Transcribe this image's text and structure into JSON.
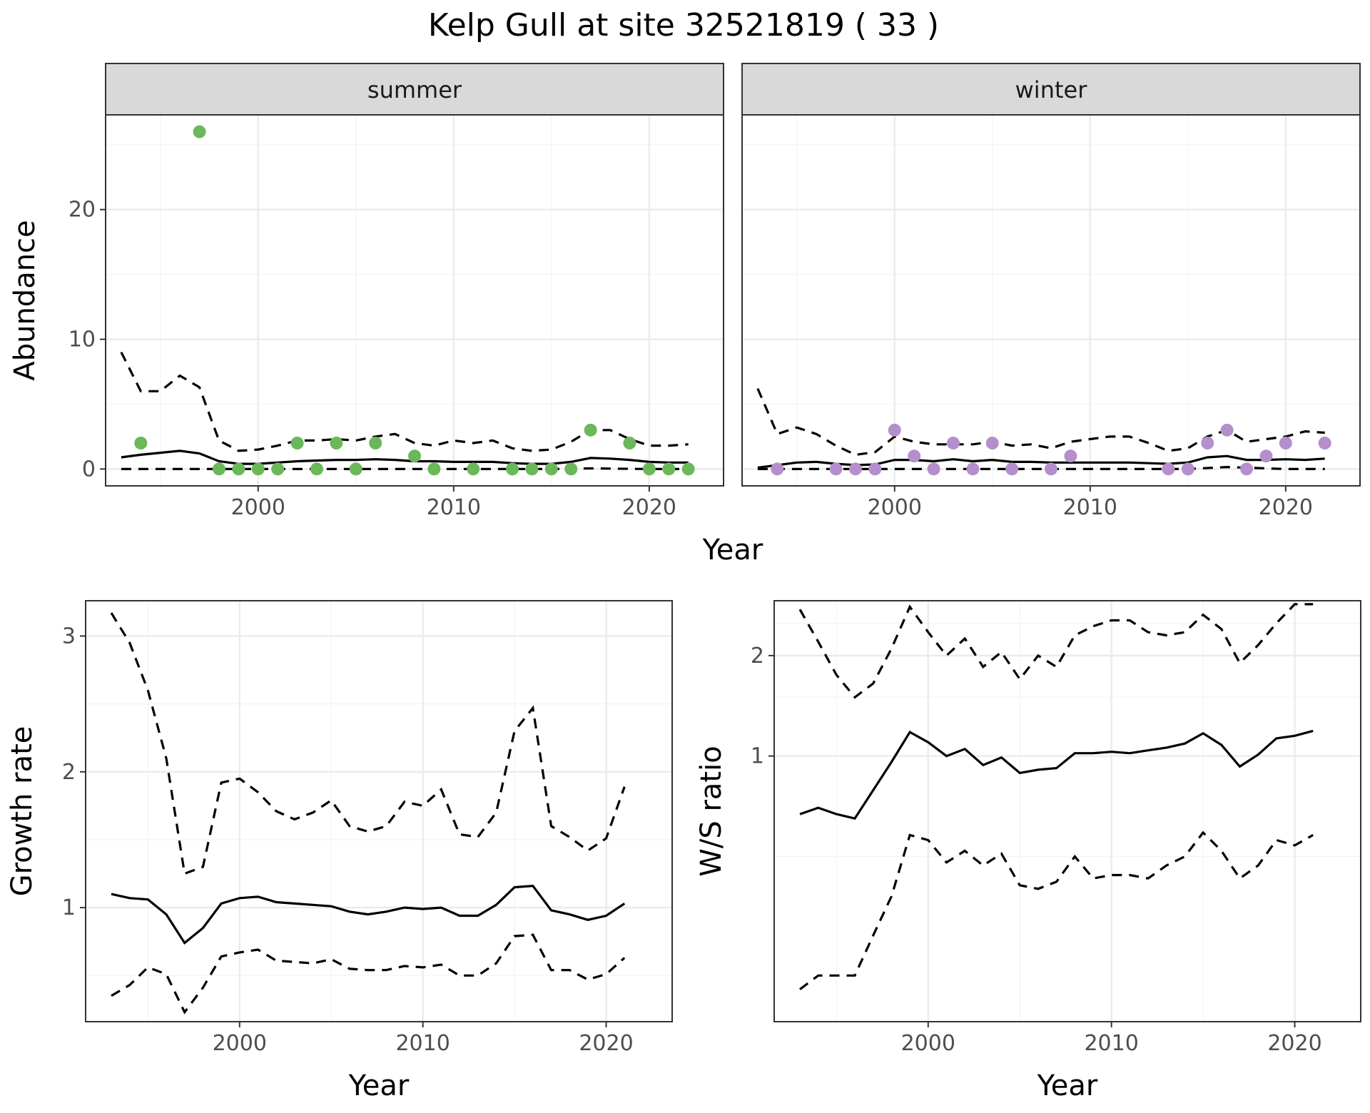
{
  "title": "Kelp Gull at site 32521819 ( 33 )",
  "chart_data": [
    {
      "type": "line",
      "panel": "abundance",
      "ylabel": "Abundance",
      "xlabel": "Year",
      "xlim": [
        1992.2,
        2023.8
      ],
      "ylim": [
        -1.3,
        27.3
      ],
      "x_ticks": [
        2000,
        2010,
        2020
      ],
      "y_ticks": [
        0,
        10,
        20
      ],
      "facets": [
        {
          "label": "summer",
          "point_color": "#6ab85a",
          "points": {
            "x": [
              1994,
              1997,
              1998,
              1999,
              2000,
              2001,
              2002,
              2003,
              2004,
              2005,
              2006,
              2008,
              2009,
              2011,
              2013,
              2014,
              2015,
              2016,
              2017,
              2019,
              2020,
              2021,
              2022
            ],
            "y": [
              2,
              26,
              0,
              0,
              0,
              0,
              2,
              0,
              2,
              0,
              2,
              1,
              0,
              0,
              0,
              0,
              0,
              0,
              3,
              2,
              0,
              0,
              0
            ]
          },
          "series": [
            {
              "style": "solid",
              "x": [
                1993,
                1994,
                1995,
                1996,
                1997,
                1998,
                1999,
                2000,
                2001,
                2002,
                2003,
                2004,
                2005,
                2006,
                2007,
                2008,
                2009,
                2010,
                2011,
                2012,
                2013,
                2014,
                2015,
                2016,
                2017,
                2018,
                2019,
                2020,
                2021,
                2022
              ],
              "values": [
                0.9,
                1.1,
                1.25,
                1.4,
                1.2,
                0.6,
                0.4,
                0.4,
                0.5,
                0.6,
                0.65,
                0.7,
                0.7,
                0.75,
                0.7,
                0.6,
                0.6,
                0.55,
                0.55,
                0.55,
                0.45,
                0.4,
                0.4,
                0.55,
                0.85,
                0.8,
                0.7,
                0.55,
                0.5,
                0.5
              ]
            },
            {
              "style": "dashed",
              "x": [
                1993,
                1994,
                1995,
                1996,
                1997,
                1998,
                1999,
                2000,
                2001,
                2002,
                2003,
                2004,
                2005,
                2006,
                2007,
                2008,
                2009,
                2010,
                2011,
                2012,
                2013,
                2014,
                2015,
                2016,
                2017,
                2018,
                2019,
                2020,
                2021,
                2022
              ],
              "values": [
                9,
                6,
                6,
                7.2,
                6.3,
                2.2,
                1.4,
                1.5,
                1.8,
                2.2,
                2.2,
                2.3,
                2.2,
                2.5,
                2.7,
                2,
                1.8,
                2.2,
                2,
                2.2,
                1.6,
                1.4,
                1.5,
                2.1,
                3,
                3,
                2.3,
                1.8,
                1.8,
                1.9
              ]
            },
            {
              "style": "dashed",
              "x": [
                1993,
                1996,
                2000,
                2005,
                2010,
                2015,
                2017,
                2020,
                2022
              ],
              "values": [
                0,
                0,
                0,
                0,
                0,
                0,
                0.05,
                0,
                0
              ]
            }
          ]
        },
        {
          "label": "winter",
          "point_color": "#b58fcb",
          "points": {
            "x": [
              1994,
              1997,
              1998,
              1999,
              2000,
              2001,
              2002,
              2003,
              2004,
              2005,
              2006,
              2008,
              2009,
              2014,
              2015,
              2016,
              2017,
              2018,
              2019,
              2020,
              2022
            ],
            "y": [
              0,
              0,
              0,
              0,
              3,
              1,
              0,
              2,
              0,
              2,
              0,
              0,
              1,
              0,
              0,
              2,
              3,
              0,
              1,
              2,
              2
            ]
          },
          "series": [
            {
              "style": "solid",
              "x": [
                1993,
                1994,
                1995,
                1996,
                1997,
                1998,
                1999,
                2000,
                2001,
                2002,
                2003,
                2004,
                2005,
                2006,
                2007,
                2008,
                2009,
                2010,
                2011,
                2012,
                2013,
                2014,
                2015,
                2016,
                2017,
                2018,
                2019,
                2020,
                2021,
                2022
              ],
              "values": [
                0.1,
                0.3,
                0.5,
                0.55,
                0.4,
                0.3,
                0.35,
                0.7,
                0.7,
                0.6,
                0.75,
                0.6,
                0.7,
                0.55,
                0.55,
                0.5,
                0.5,
                0.5,
                0.5,
                0.5,
                0.45,
                0.4,
                0.5,
                0.9,
                1,
                0.7,
                0.7,
                0.75,
                0.7,
                0.8
              ]
            },
            {
              "style": "dashed",
              "x": [
                1993,
                1994,
                1995,
                1996,
                1997,
                1998,
                1999,
                2000,
                2001,
                2002,
                2003,
                2004,
                2005,
                2006,
                2007,
                2008,
                2009,
                2010,
                2011,
                2012,
                2013,
                2014,
                2015,
                2016,
                2017,
                2018,
                2019,
                2020,
                2021,
                2022
              ],
              "values": [
                6.2,
                2.7,
                3.2,
                2.7,
                1.8,
                1.1,
                1.3,
                2.5,
                2.1,
                1.9,
                1.9,
                1.9,
                2.1,
                1.8,
                1.9,
                1.6,
                2.1,
                2.3,
                2.5,
                2.5,
                2,
                1.4,
                1.6,
                2.5,
                3,
                2.1,
                2.3,
                2.5,
                2.9,
                2.8
              ]
            },
            {
              "style": "dashed",
              "x": [
                1993,
                1996,
                2000,
                2005,
                2010,
                2015,
                2017,
                2020,
                2022
              ],
              "values": [
                0,
                0,
                0,
                0,
                0,
                0,
                0.15,
                0,
                0
              ]
            }
          ]
        }
      ]
    },
    {
      "type": "line",
      "panel": "growth",
      "ylabel": "Growth rate",
      "xlabel": "Year",
      "xlim": [
        1991.6,
        2023.6
      ],
      "ylim": [
        0.16,
        3.26
      ],
      "x_ticks": [
        2000,
        2010,
        2020
      ],
      "y_ticks": [
        1,
        2,
        3
      ],
      "series": [
        {
          "style": "solid",
          "x": [
            1993,
            1994,
            1995,
            1996,
            1997,
            1998,
            1999,
            2000,
            2001,
            2002,
            2003,
            2004,
            2005,
            2006,
            2007,
            2008,
            2009,
            2010,
            2011,
            2012,
            2013,
            2014,
            2015,
            2016,
            2017,
            2018,
            2019,
            2020,
            2021
          ],
          "values": [
            1.1,
            1.07,
            1.06,
            0.95,
            0.74,
            0.85,
            1.03,
            1.07,
            1.08,
            1.04,
            1.03,
            1.02,
            1.01,
            0.97,
            0.95,
            0.97,
            1,
            0.99,
            1,
            0.94,
            0.94,
            1.02,
            1.15,
            1.16,
            0.98,
            0.95,
            0.91,
            0.94,
            1.03
          ]
        },
        {
          "style": "dashed",
          "x": [
            1993,
            1994,
            1995,
            1996,
            1997,
            1998,
            1999,
            2000,
            2001,
            2002,
            2003,
            2004,
            2005,
            2006,
            2007,
            2008,
            2009,
            2010,
            2011,
            2012,
            2013,
            2014,
            2015,
            2016,
            2017,
            2018,
            2019,
            2020,
            2021
          ],
          "values": [
            3.17,
            2.95,
            2.6,
            2.1,
            1.25,
            1.3,
            1.92,
            1.95,
            1.85,
            1.71,
            1.65,
            1.7,
            1.79,
            1.6,
            1.56,
            1.6,
            1.78,
            1.75,
            1.87,
            1.54,
            1.52,
            1.7,
            2.3,
            2.47,
            1.6,
            1.52,
            1.42,
            1.51,
            1.89
          ]
        },
        {
          "style": "dashed",
          "x": [
            1993,
            1994,
            1995,
            1996,
            1997,
            1998,
            1999,
            2000,
            2001,
            2002,
            2003,
            2004,
            2005,
            2006,
            2007,
            2008,
            2009,
            2010,
            2011,
            2012,
            2013,
            2014,
            2015,
            2016,
            2017,
            2018,
            2019,
            2020,
            2021
          ],
          "values": [
            0.35,
            0.43,
            0.56,
            0.51,
            0.23,
            0.41,
            0.64,
            0.67,
            0.69,
            0.61,
            0.6,
            0.59,
            0.62,
            0.55,
            0.54,
            0.54,
            0.57,
            0.56,
            0.58,
            0.5,
            0.5,
            0.59,
            0.79,
            0.8,
            0.54,
            0.54,
            0.47,
            0.51,
            0.63
          ]
        }
      ]
    },
    {
      "type": "line",
      "panel": "ratio",
      "ylabel": "W/S ratio",
      "xlabel": "Year",
      "xlim": [
        1991.6,
        2023.6
      ],
      "ylim": [
        0.16,
        2.92
      ],
      "x_ticks": [
        2000,
        2010,
        2020
      ],
      "y_ticks": [
        1,
        2
      ],
      "y_scale": "log",
      "series": [
        {
          "style": "solid",
          "x": [
            1993,
            1994,
            1995,
            1996,
            1997,
            1998,
            1999,
            2000,
            2001,
            2002,
            2003,
            2004,
            2005,
            2006,
            2007,
            2008,
            2009,
            2010,
            2011,
            2012,
            2013,
            2014,
            2015,
            2016,
            2017,
            2018,
            2019,
            2020,
            2021
          ],
          "values": [
            0.67,
            0.7,
            0.67,
            0.65,
            0.79,
            0.96,
            1.18,
            1.1,
            1,
            1.05,
            0.94,
            0.99,
            0.89,
            0.91,
            0.92,
            1.02,
            1.02,
            1.03,
            1.02,
            1.04,
            1.06,
            1.09,
            1.17,
            1.08,
            0.93,
            1.01,
            1.13,
            1.15,
            1.19
          ]
        },
        {
          "style": "dashed",
          "x": [
            1993,
            1994,
            1995,
            1996,
            1997,
            1998,
            1999,
            2000,
            2001,
            2002,
            2003,
            2004,
            2005,
            2006,
            2007,
            2008,
            2009,
            2010,
            2011,
            2012,
            2013,
            2014,
            2015,
            2016,
            2017,
            2018,
            2019,
            2020,
            2021
          ],
          "values": [
            2.75,
            2.2,
            1.75,
            1.5,
            1.65,
            2.1,
            2.8,
            2.35,
            2,
            2.25,
            1.85,
            2.05,
            1.7,
            2,
            1.85,
            2.3,
            2.45,
            2.55,
            2.55,
            2.35,
            2.3,
            2.35,
            2.65,
            2.4,
            1.9,
            2.15,
            2.5,
            2.85,
            2.85
          ]
        },
        {
          "style": "dashed",
          "x": [
            1993,
            1994,
            1995,
            1996,
            1997,
            1998,
            1999,
            2000,
            2001,
            2002,
            2003,
            2004,
            2005,
            2006,
            2007,
            2008,
            2009,
            2010,
            2011,
            2012,
            2013,
            2014,
            2015,
            2016,
            2017,
            2018,
            2019,
            2020,
            2021
          ],
          "values": [
            0.2,
            0.22,
            0.22,
            0.22,
            0.29,
            0.38,
            0.58,
            0.56,
            0.48,
            0.52,
            0.47,
            0.51,
            0.41,
            0.4,
            0.42,
            0.5,
            0.43,
            0.44,
            0.44,
            0.43,
            0.47,
            0.5,
            0.59,
            0.52,
            0.43,
            0.47,
            0.56,
            0.54,
            0.58
          ]
        }
      ]
    }
  ]
}
